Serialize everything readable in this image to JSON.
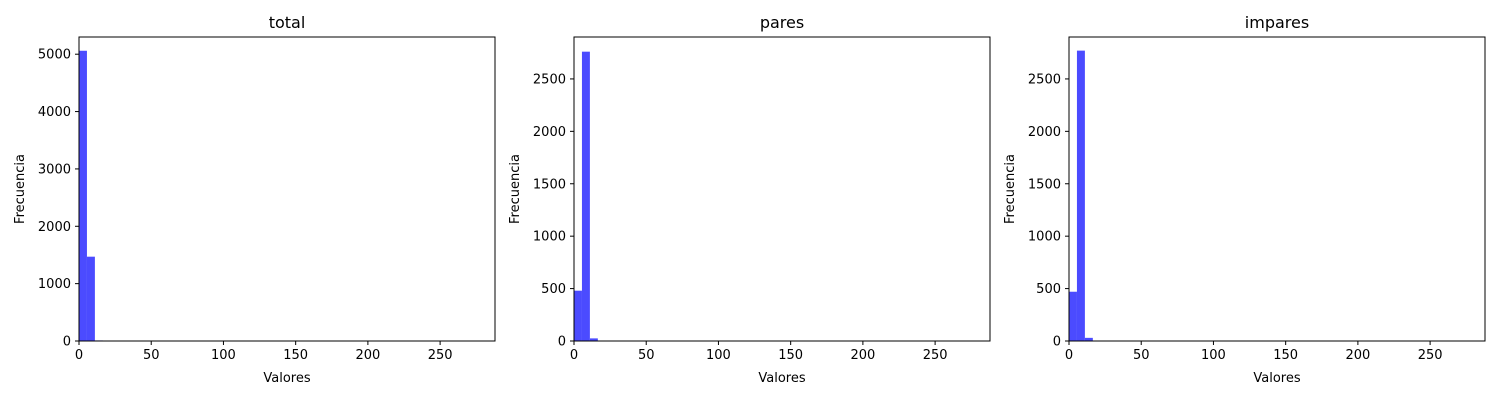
{
  "chart_data": [
    {
      "type": "bar",
      "title": "total",
      "xlabel": "Valores",
      "ylabel": "Frecuencia",
      "xlim": [
        0,
        288
      ],
      "ylim": [
        0,
        5300
      ],
      "xticks": [
        0,
        50,
        100,
        150,
        200,
        250
      ],
      "yticks": [
        0,
        1000,
        2000,
        3000,
        4000,
        5000
      ],
      "bin_width": 5.5,
      "bins": [
        {
          "x0": 0,
          "x1": 5.5,
          "count": 5060
        },
        {
          "x0": 5.5,
          "x1": 11,
          "count": 1470
        },
        {
          "x0": 11,
          "x1": 16.5,
          "count": 10
        }
      ],
      "color": "#4b4bff"
    },
    {
      "type": "bar",
      "title": "pares",
      "xlabel": "Valores",
      "ylabel": "Frecuencia",
      "xlim": [
        0,
        288
      ],
      "ylim": [
        0,
        2900
      ],
      "xticks": [
        0,
        50,
        100,
        150,
        200,
        250
      ],
      "yticks": [
        0,
        500,
        1000,
        1500,
        2000,
        2500
      ],
      "bin_width": 5.5,
      "bins": [
        {
          "x0": 0,
          "x1": 5.5,
          "count": 480
        },
        {
          "x0": 5.5,
          "x1": 11,
          "count": 2760
        },
        {
          "x0": 11,
          "x1": 16.5,
          "count": 25
        }
      ],
      "color": "#4b4bff"
    },
    {
      "type": "bar",
      "title": "impares",
      "xlabel": "Valores",
      "ylabel": "Frecuencia",
      "xlim": [
        0,
        288
      ],
      "ylim": [
        0,
        2900
      ],
      "xticks": [
        0,
        50,
        100,
        150,
        200,
        250
      ],
      "yticks": [
        0,
        500,
        1000,
        1500,
        2000,
        2500
      ],
      "bin_width": 5.5,
      "bins": [
        {
          "x0": 0,
          "x1": 5.5,
          "count": 470
        },
        {
          "x0": 5.5,
          "x1": 11,
          "count": 2770
        },
        {
          "x0": 11,
          "x1": 16.5,
          "count": 30
        }
      ],
      "color": "#4b4bff"
    }
  ]
}
